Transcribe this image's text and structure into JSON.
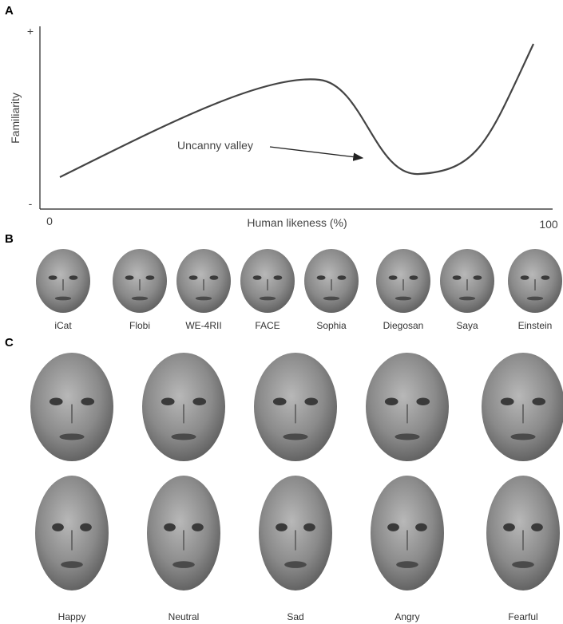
{
  "panel_a": {
    "label": "A",
    "y_axis_label": "Familiarity",
    "y_top": "+",
    "y_bottom": "-",
    "x_axis_label": "Human likeness (%)",
    "x_start": "0",
    "x_end": "100",
    "annotation": "Uncanny valley"
  },
  "panel_b": {
    "label": "B",
    "robots": [
      "iCat",
      "Flobi",
      "WE-4RII",
      "FACE",
      "Sophia",
      "Diegosan",
      "Saya",
      "Einstein"
    ]
  },
  "panel_c": {
    "label": "C",
    "emotions": [
      "Happy",
      "Neutral",
      "Sad",
      "Angry",
      "Fearful"
    ]
  }
}
